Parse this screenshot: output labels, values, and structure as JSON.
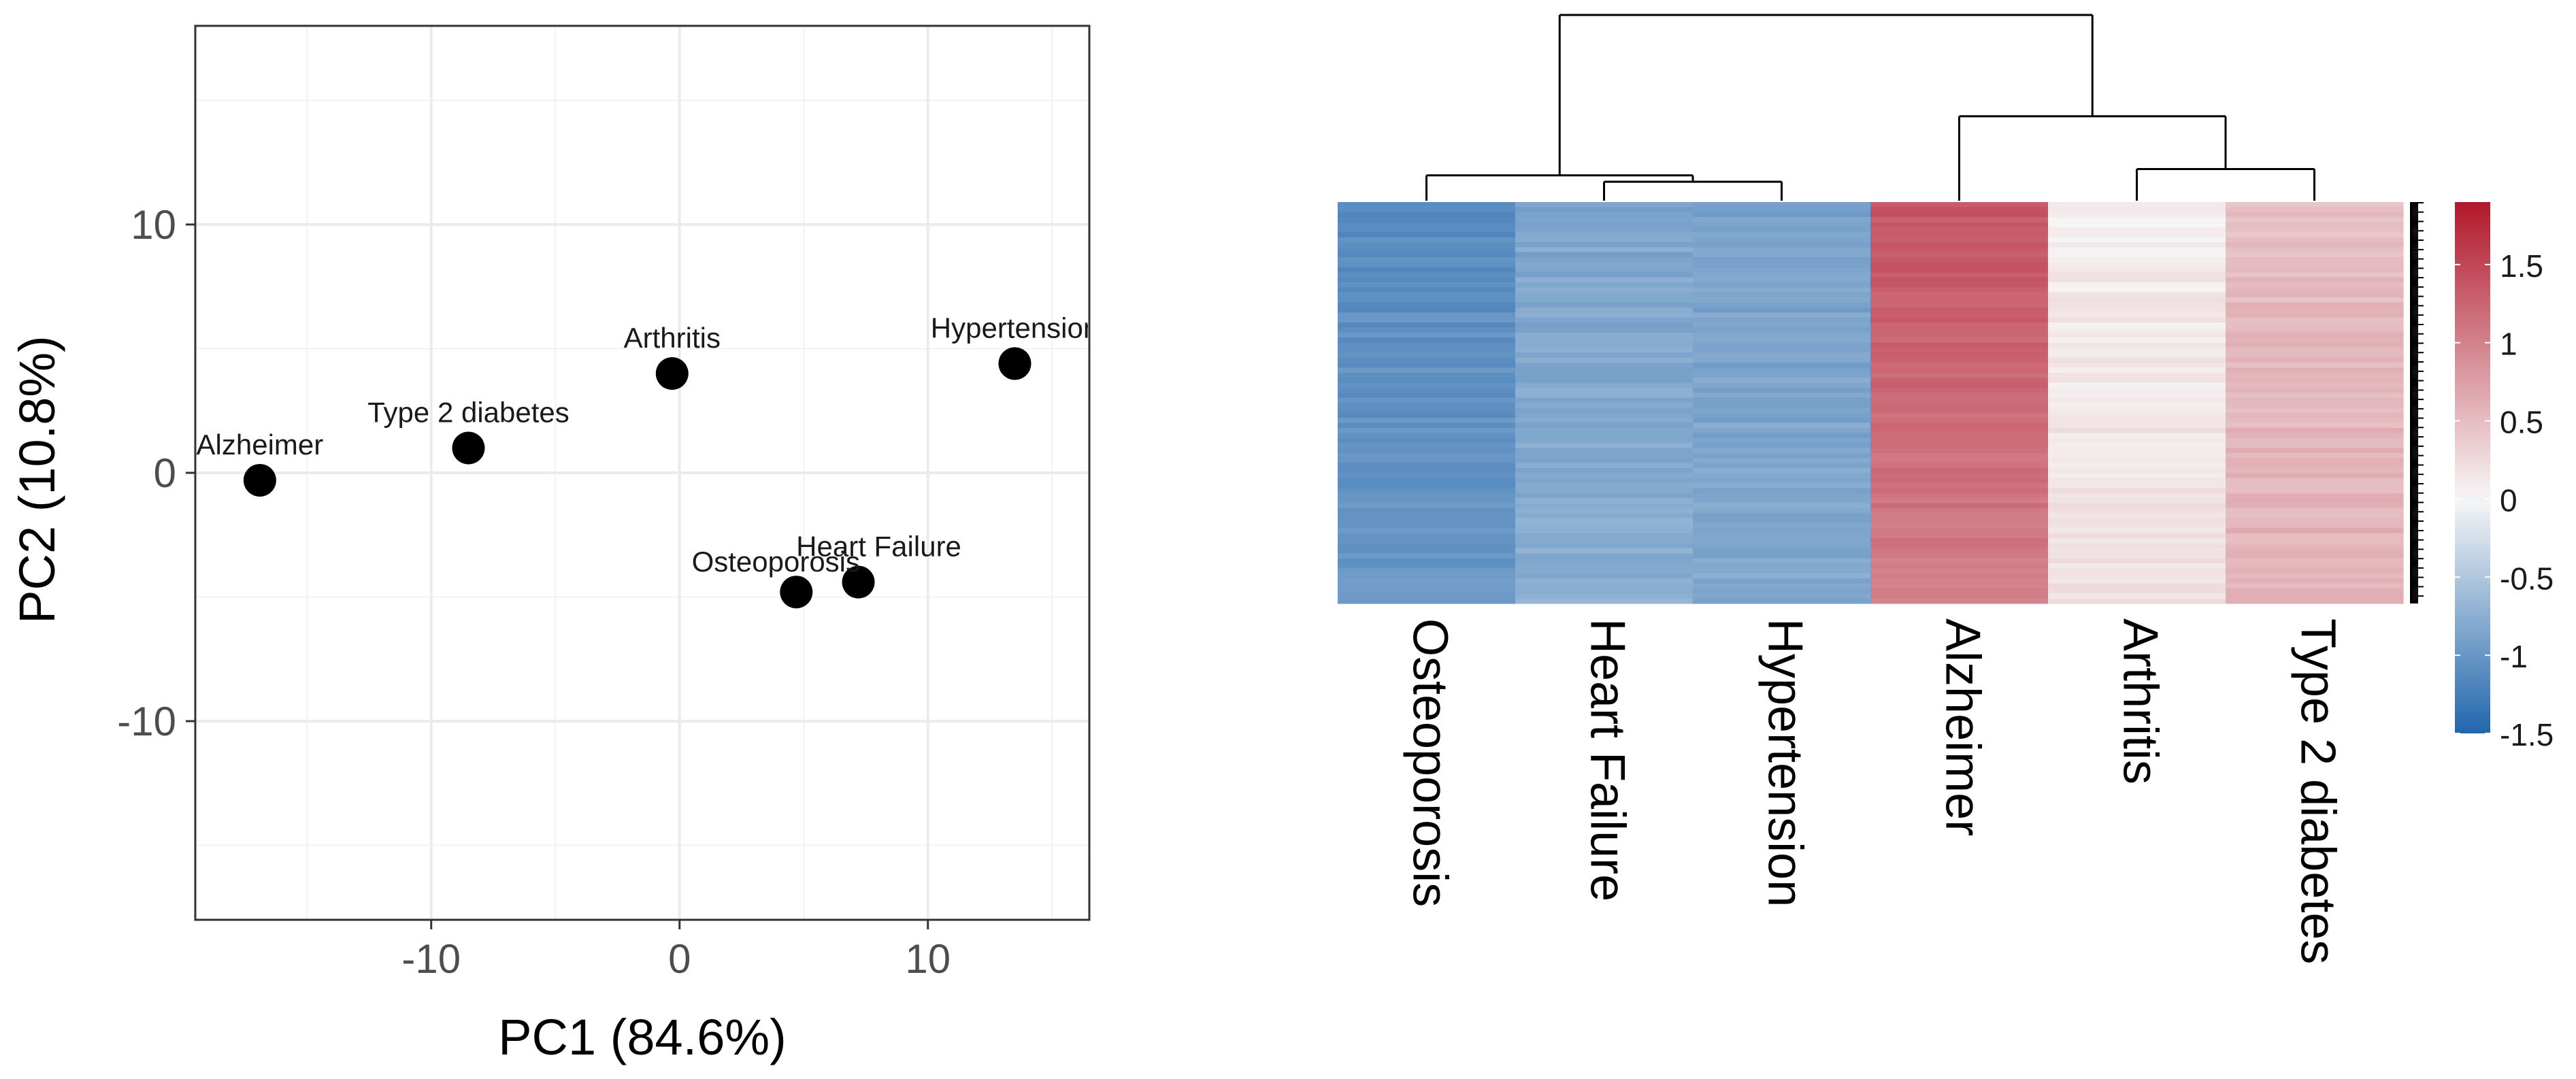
{
  "chart_data": [
    {
      "type": "scatter",
      "title": "",
      "xlabel": "PC1 (84.6%)",
      "ylabel": "PC2 (10.8%)",
      "xlim": [
        -19.5,
        16.5
      ],
      "ylim": [
        -18,
        18
      ],
      "xticks": [
        -10,
        0,
        10
      ],
      "xtick_labels": [
        "-10",
        "0",
        "10"
      ],
      "yticks": [
        -10,
        0,
        10
      ],
      "ytick_labels": [
        "-10",
        "0",
        "10"
      ],
      "grid": true,
      "points": [
        {
          "label": "Alzheimer",
          "x": -16.9,
          "y": -0.3
        },
        {
          "label": "Type 2 diabetes",
          "x": -8.5,
          "y": 1.0
        },
        {
          "label": "Arthritis",
          "x": -0.3,
          "y": 4.0
        },
        {
          "label": "Hypertension",
          "x": 13.5,
          "y": 4.4
        },
        {
          "label": "Osteoporosis",
          "x": 4.7,
          "y": -4.8
        },
        {
          "label": "Heart Failure",
          "x": 7.2,
          "y": -4.4
        }
      ]
    },
    {
      "type": "heatmap",
      "title": "",
      "columns": [
        "Osteoporosis",
        "Heart Failure",
        "Hypertension",
        "Alzheimer",
        "Arthritis",
        "Type 2 diabetes"
      ],
      "column_mean_values": [
        -1.05,
        -0.8,
        -0.85,
        1.2,
        0.15,
        0.55
      ],
      "row_count": 80,
      "color_scale": {
        "min": -1.5,
        "max": 1.9,
        "low_color": "#2166ac",
        "mid_color": "#f7f7f7",
        "high_color": "#b2182b",
        "ticks": [
          -1.5,
          -1,
          -0.5,
          0,
          0.5,
          1,
          1.5
        ],
        "tick_labels": [
          "-1.5",
          "-1",
          "-0.5",
          "0",
          "0.5",
          "1",
          "1.5"
        ]
      },
      "dendrogram": {
        "merges": [
          {
            "left": "Heart Failure",
            "right": "Hypertension",
            "height": 0.9
          },
          {
            "left": "Osteoporosis",
            "right": "Heart Failure + Hypertension",
            "height": 1.2
          },
          {
            "left": "Arthritis",
            "right": "Type 2 diabetes",
            "height": 1.5
          },
          {
            "left": "Alzheimer",
            "right": "Arthritis + Type 2 diabetes",
            "height": 4.0
          },
          {
            "left": "Osteoporosis cluster",
            "right": "Alzheimer cluster",
            "height": 8.8
          }
        ]
      }
    }
  ]
}
